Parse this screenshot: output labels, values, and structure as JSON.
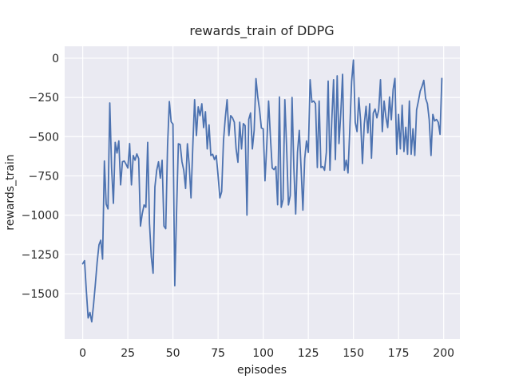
{
  "figure": {
    "title": "rewards_train of DDPG",
    "xlabel": "episodes",
    "ylabel": "rewards_train"
  },
  "chart_data": {
    "type": "line",
    "title": "rewards_train of DDPG",
    "xlabel": "episodes",
    "ylabel": "rewards_train",
    "grid": true,
    "legend": null,
    "xlim": [
      -10,
      209
    ],
    "ylim": [
      -1790,
      76
    ],
    "x_tick_values": [
      0,
      25,
      50,
      75,
      100,
      125,
      150,
      175,
      200
    ],
    "x_tick_labels": [
      "0",
      "25",
      "50",
      "75",
      "100",
      "125",
      "150",
      "175",
      "200"
    ],
    "y_tick_values": [
      0,
      -250,
      -500,
      -750,
      -1000,
      -1250,
      -1500
    ],
    "y_tick_labels": [
      "0",
      "−250",
      "−500",
      "−750",
      "−1000",
      "−1250",
      "−1500"
    ],
    "colors": {
      "line": "#4c72b0",
      "plot_background": "#eaeaf2",
      "gridline": "#ffffff",
      "figure_background": "#ffffff",
      "text": "#262626"
    },
    "series": [
      {
        "name": "rewards_train",
        "color": "#4c72b0",
        "x_start": 0,
        "x_step": 1,
        "values": [
          -1310,
          -1290,
          -1480,
          -1655,
          -1620,
          -1680,
          -1570,
          -1440,
          -1300,
          -1190,
          -1160,
          -1280,
          -655,
          -930,
          -960,
          -285,
          -700,
          -925,
          -536,
          -604,
          -527,
          -807,
          -660,
          -655,
          -675,
          -700,
          -544,
          -807,
          -620,
          -650,
          -610,
          -640,
          -1070,
          -990,
          -935,
          -950,
          -536,
          -1053,
          -1265,
          -1370,
          -820,
          -714,
          -660,
          -764,
          -650,
          -1070,
          -1086,
          -560,
          -276,
          -405,
          -420,
          -1450,
          -980,
          -545,
          -550,
          -660,
          -714,
          -830,
          -545,
          -680,
          -890,
          -560,
          -264,
          -493,
          -310,
          -366,
          -290,
          -442,
          -341,
          -578,
          -425,
          -620,
          -612,
          -646,
          -620,
          -747,
          -890,
          -850,
          -527,
          -380,
          -264,
          -493,
          -366,
          -380,
          -408,
          -578,
          -663,
          -408,
          -578,
          -417,
          -430,
          -1000,
          -390,
          -349,
          -578,
          -460,
          -130,
          -247,
          -330,
          -445,
          -450,
          -781,
          -550,
          -273,
          -500,
          -700,
          -710,
          -690,
          -934,
          -247,
          -950,
          -900,
          -264,
          -575,
          -935,
          -875,
          -250,
          -700,
          -993,
          -600,
          -460,
          -700,
          -968,
          -640,
          -527,
          -600,
          -137,
          -280,
          -273,
          -290,
          -697,
          -273,
          -697,
          -690,
          -714,
          -600,
          -146,
          -714,
          -400,
          -137,
          -646,
          -112,
          -544,
          -350,
          -103,
          -714,
          -650,
          -731,
          -450,
          -150,
          -12,
          -408,
          -468,
          -252,
          -400,
          -671,
          -420,
          -307,
          -476,
          -290,
          -637,
          -350,
          -324,
          -380,
          -330,
          -137,
          -468,
          -273,
          -375,
          -442,
          -247,
          -392,
          -200,
          -129,
          -612,
          -358,
          -578,
          -300,
          -595,
          -440,
          -612,
          -273,
          -612,
          -450,
          -620,
          -330,
          -273,
          -210,
          -180,
          -141,
          -256,
          -290,
          -392,
          -620,
          -358,
          -400,
          -390,
          -408,
          -485,
          -129
        ]
      }
    ]
  }
}
